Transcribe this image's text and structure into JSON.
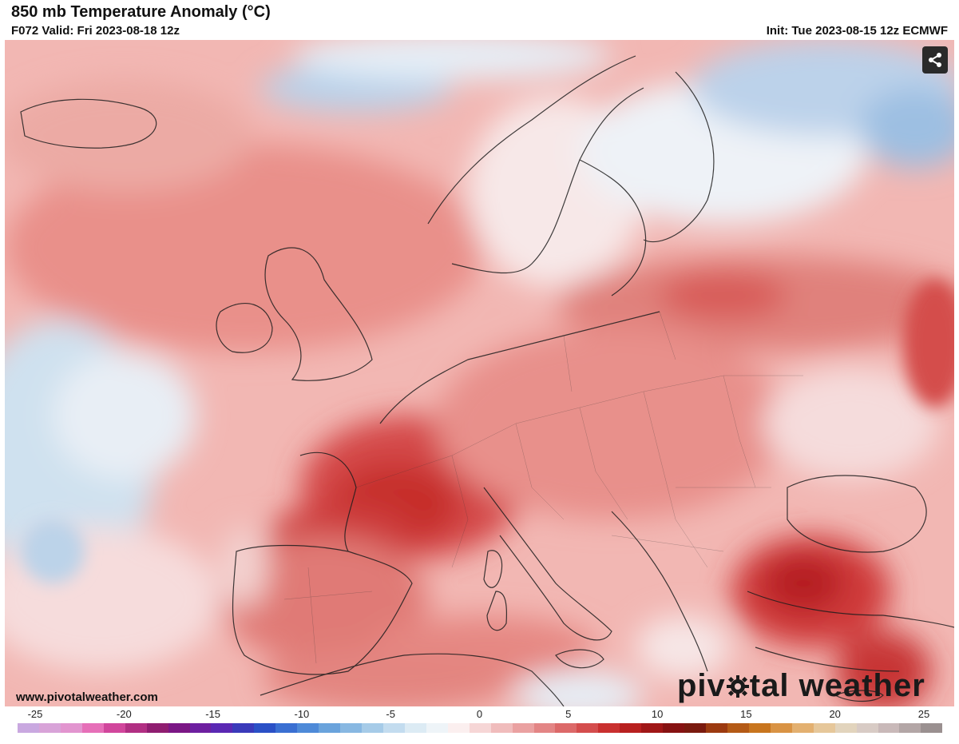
{
  "header": {
    "title": "850 mb Temperature Anomaly (°C)",
    "valid": "F072 Valid: Fri 2023-08-18 12z",
    "init": "Init: Tue 2023-08-15 12z ECMWF"
  },
  "map": {
    "region": "Europe",
    "share_icon": "share-icon"
  },
  "footer": {
    "url": "www.pivotalweather.com",
    "logo_text_left": "piv",
    "logo_text_right": "tal weather"
  },
  "colorbar": {
    "ticks": [
      "-25",
      "-20",
      "-15",
      "-10",
      "-5",
      "0",
      "5",
      "10",
      "15",
      "20",
      "25"
    ],
    "colors": [
      "#c9a8e0",
      "#d8a3d8",
      "#e295cf",
      "#e66fb8",
      "#d1469c",
      "#b12f83",
      "#8f1d70",
      "#7b1785",
      "#6d1fa0",
      "#5a28b3",
      "#3a3aba",
      "#2a50c6",
      "#3a6fd2",
      "#4e8ad8",
      "#6aa3dc",
      "#88b8e2",
      "#a6cbe8",
      "#c3dcef",
      "#dcebf4",
      "#eef4f8",
      "#fbefef",
      "#f6d6d6",
      "#f0bcbc",
      "#eaa1a1",
      "#e38585",
      "#dc6969",
      "#d44d4d",
      "#c9302f",
      "#b8201f",
      "#a01717",
      "#861212",
      "#7a1a0f",
      "#9c3a10",
      "#b45a16",
      "#c8751e",
      "#d99344",
      "#e3b070",
      "#e6c79a",
      "#e2d4bd",
      "#d8cbc5",
      "#c9b9b9",
      "#b3a6a6",
      "#9a9090"
    ]
  }
}
